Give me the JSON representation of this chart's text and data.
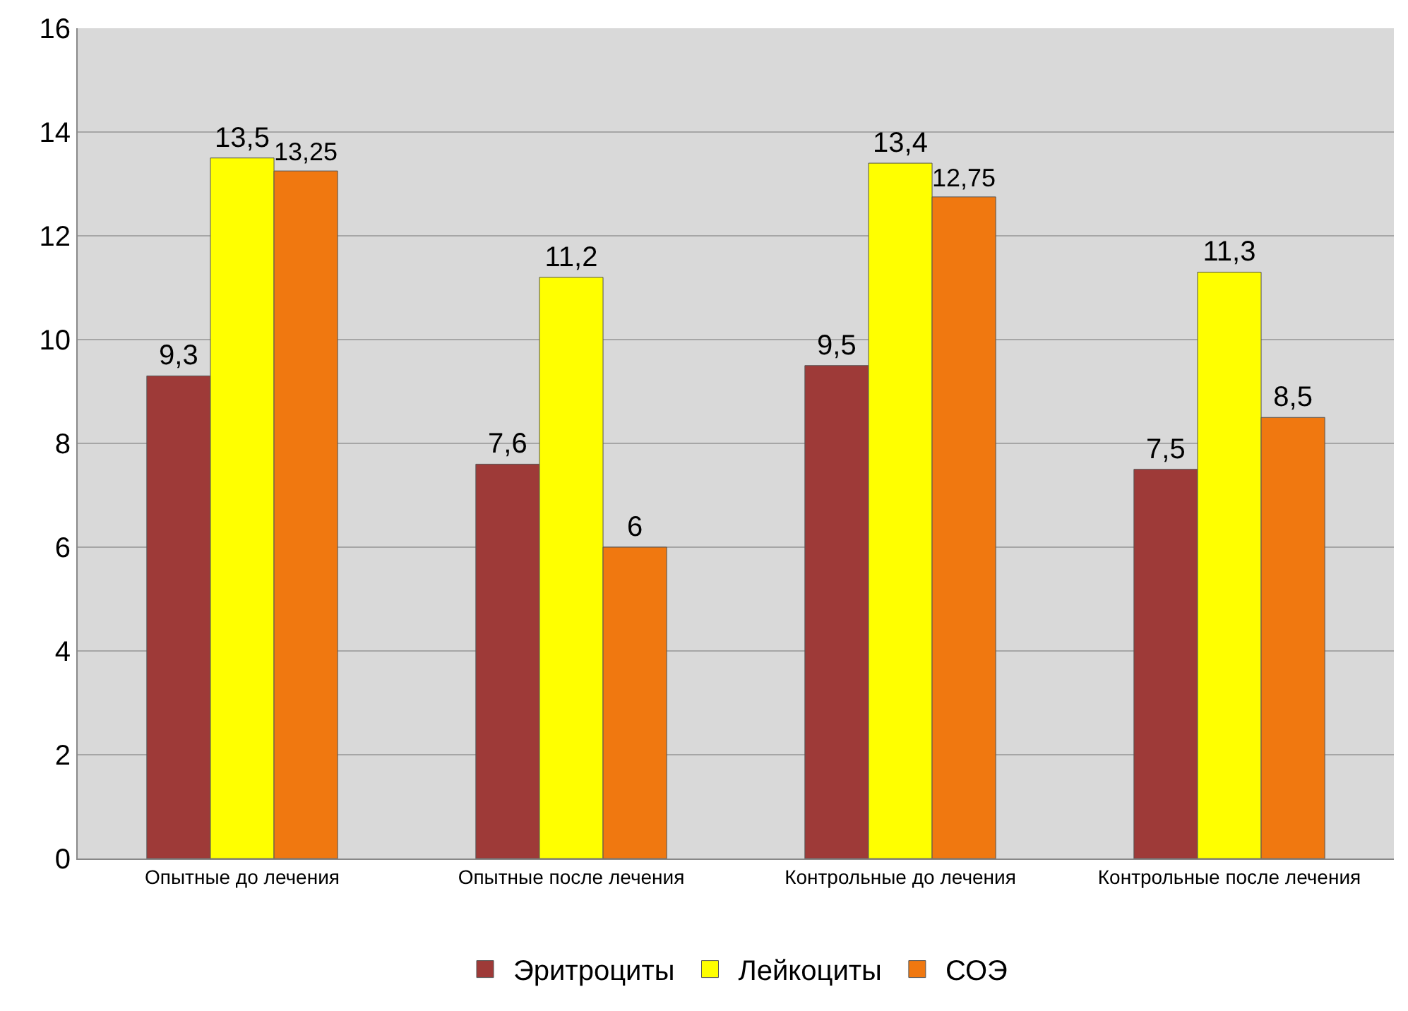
{
  "chart_data": {
    "type": "bar",
    "categories": [
      "Опытные до лечения",
      "Опытные после лечения",
      "Контрольные до лечения",
      "Контрольные после лечения"
    ],
    "series": [
      {
        "name": "Эритроциты",
        "color": "#9e3a38",
        "values": [
          9.3,
          7.6,
          9.5,
          7.5
        ],
        "value_labels": [
          "9,3",
          "7,6",
          "9,5",
          "7,5"
        ]
      },
      {
        "name": "Лейкоциты",
        "color": "#ffff00",
        "values": [
          13.5,
          11.2,
          13.4,
          11.3
        ],
        "value_labels": [
          "13,5",
          "11,2",
          "13,4",
          "11,3"
        ]
      },
      {
        "name": "СОЭ",
        "color": "#f07810",
        "values": [
          13.25,
          6,
          12.75,
          8.5
        ],
        "value_labels": [
          "13,25",
          "6",
          "12,75",
          "8,5"
        ]
      }
    ],
    "ylim": [
      0,
      16
    ],
    "yticks": [
      0,
      2,
      4,
      6,
      8,
      10,
      12,
      14,
      16
    ],
    "grid": "y",
    "legend": "bottom"
  }
}
